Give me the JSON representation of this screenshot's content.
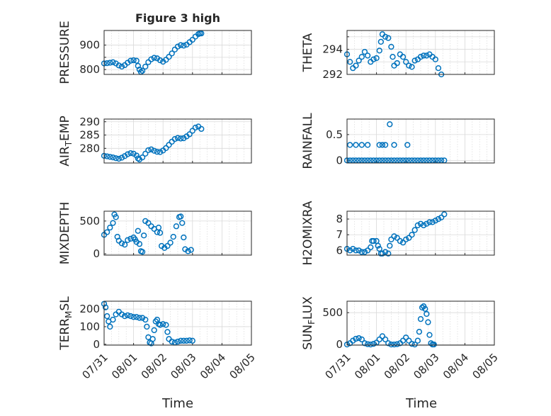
{
  "figure": {
    "title": "Figure 3 high",
    "xlabel": "Time",
    "x_ticks": [
      "07/31",
      "08/01",
      "08/02",
      "08/03",
      "08/04",
      "08/05"
    ],
    "marker_color": "#0072BD",
    "grid_color": "#d9d9d9"
  },
  "chart_data": [
    {
      "type": "scatter",
      "ylabel": "PRESSURE",
      "ylabel_sub": "",
      "ylabel_tail": "",
      "xlim": [
        0,
        5
      ],
      "ylim": [
        780,
        960
      ],
      "yticks": [
        800,
        850,
        900
      ],
      "ytick_labels": [
        "800",
        "",
        "900"
      ],
      "points": [
        [
          0,
          825
        ],
        [
          0.1,
          826
        ],
        [
          0.2,
          828
        ],
        [
          0.3,
          830
        ],
        [
          0.4,
          825
        ],
        [
          0.5,
          817
        ],
        [
          0.6,
          812
        ],
        [
          0.7,
          818
        ],
        [
          0.8,
          828
        ],
        [
          0.9,
          836
        ],
        [
          1.0,
          838
        ],
        [
          1.1,
          836
        ],
        [
          1.15,
          815
        ],
        [
          1.2,
          800
        ],
        [
          1.25,
          790
        ],
        [
          1.3,
          795
        ],
        [
          1.4,
          812
        ],
        [
          1.5,
          830
        ],
        [
          1.6,
          842
        ],
        [
          1.7,
          848
        ],
        [
          1.8,
          846
        ],
        [
          1.9,
          838
        ],
        [
          2.0,
          832
        ],
        [
          2.1,
          840
        ],
        [
          2.2,
          852
        ],
        [
          2.3,
          866
        ],
        [
          2.4,
          882
        ],
        [
          2.5,
          894
        ],
        [
          2.6,
          900
        ],
        [
          2.7,
          898
        ],
        [
          2.8,
          902
        ],
        [
          2.9,
          912
        ],
        [
          3.0,
          922
        ],
        [
          3.1,
          935
        ],
        [
          3.2,
          945
        ],
        [
          3.25,
          948
        ],
        [
          3.3,
          948
        ]
      ]
    },
    {
      "type": "scatter",
      "ylabel": "THETA",
      "ylabel_sub": "",
      "ylabel_tail": "",
      "xlim": [
        0,
        5
      ],
      "ylim": [
        292,
        295.5
      ],
      "yticks": [
        292,
        293,
        294,
        295
      ],
      "ytick_labels": [
        "292",
        "",
        "294",
        ""
      ],
      "points": [
        [
          0,
          293.6
        ],
        [
          0.1,
          293.0
        ],
        [
          0.2,
          292.5
        ],
        [
          0.3,
          292.7
        ],
        [
          0.4,
          293.1
        ],
        [
          0.5,
          293.4
        ],
        [
          0.6,
          293.8
        ],
        [
          0.7,
          293.5
        ],
        [
          0.8,
          293.0
        ],
        [
          0.9,
          293.2
        ],
        [
          1.0,
          293.3
        ],
        [
          1.1,
          293.9
        ],
        [
          1.15,
          294.6
        ],
        [
          1.2,
          295.2
        ],
        [
          1.3,
          295.0
        ],
        [
          1.4,
          294.9
        ],
        [
          1.5,
          294.2
        ],
        [
          1.55,
          293.4
        ],
        [
          1.6,
          292.7
        ],
        [
          1.7,
          292.9
        ],
        [
          1.8,
          293.6
        ],
        [
          1.9,
          293.4
        ],
        [
          2.0,
          293.0
        ],
        [
          2.1,
          292.7
        ],
        [
          2.2,
          292.6
        ],
        [
          2.3,
          293.1
        ],
        [
          2.4,
          293.2
        ],
        [
          2.5,
          293.4
        ],
        [
          2.6,
          293.5
        ],
        [
          2.7,
          293.5
        ],
        [
          2.8,
          293.6
        ],
        [
          2.9,
          293.4
        ],
        [
          3.0,
          293.2
        ],
        [
          3.1,
          292.5
        ],
        [
          3.2,
          292.0
        ]
      ]
    },
    {
      "type": "scatter",
      "ylabel": "AIR",
      "ylabel_sub": "T",
      "ylabel_tail": "EMP",
      "xlim": [
        0,
        5
      ],
      "ylim": [
        274.5,
        291
      ],
      "yticks": [
        280,
        285,
        290
      ],
      "ytick_labels": [
        "280",
        "285",
        "290"
      ],
      "points": [
        [
          0,
          277.2
        ],
        [
          0.1,
          277.0
        ],
        [
          0.2,
          276.8
        ],
        [
          0.3,
          276.6
        ],
        [
          0.4,
          276.3
        ],
        [
          0.5,
          276.1
        ],
        [
          0.6,
          276.5
        ],
        [
          0.7,
          277.1
        ],
        [
          0.8,
          277.8
        ],
        [
          0.9,
          278.2
        ],
        [
          1.0,
          278.0
        ],
        [
          1.1,
          277.3
        ],
        [
          1.15,
          276.2
        ],
        [
          1.2,
          275.8
        ],
        [
          1.3,
          276.6
        ],
        [
          1.4,
          278.0
        ],
        [
          1.5,
          279.3
        ],
        [
          1.6,
          279.6
        ],
        [
          1.7,
          279.1
        ],
        [
          1.8,
          278.7
        ],
        [
          1.9,
          278.6
        ],
        [
          2.0,
          279.2
        ],
        [
          2.1,
          280.1
        ],
        [
          2.2,
          281.3
        ],
        [
          2.3,
          282.5
        ],
        [
          2.4,
          283.5
        ],
        [
          2.5,
          283.9
        ],
        [
          2.6,
          283.7
        ],
        [
          2.7,
          283.8
        ],
        [
          2.8,
          284.5
        ],
        [
          2.9,
          285.3
        ],
        [
          3.0,
          286.6
        ],
        [
          3.1,
          287.8
        ],
        [
          3.2,
          288.2
        ],
        [
          3.3,
          287.3
        ]
      ]
    },
    {
      "type": "scatter",
      "ylabel": "RAINFALL",
      "ylabel_sub": "",
      "ylabel_tail": "",
      "xlim": [
        0,
        5
      ],
      "ylim": [
        -0.05,
        0.8
      ],
      "yticks": [
        0,
        0.5
      ],
      "ytick_labels": [
        "0",
        "0.5"
      ],
      "points": [
        [
          0,
          0
        ],
        [
          0.1,
          0
        ],
        [
          0.2,
          0
        ],
        [
          0.3,
          0
        ],
        [
          0.4,
          0
        ],
        [
          0.5,
          0
        ],
        [
          0.6,
          0
        ],
        [
          0.7,
          0
        ],
        [
          0.8,
          0
        ],
        [
          0.9,
          0
        ],
        [
          1.0,
          0
        ],
        [
          1.1,
          0
        ],
        [
          1.2,
          0
        ],
        [
          1.3,
          0
        ],
        [
          1.4,
          0
        ],
        [
          1.5,
          0
        ],
        [
          1.6,
          0
        ],
        [
          1.7,
          0
        ],
        [
          1.8,
          0
        ],
        [
          1.9,
          0
        ],
        [
          2.0,
          0
        ],
        [
          2.1,
          0
        ],
        [
          2.2,
          0
        ],
        [
          2.3,
          0
        ],
        [
          2.4,
          0
        ],
        [
          2.5,
          0
        ],
        [
          2.6,
          0
        ],
        [
          2.7,
          0
        ],
        [
          2.8,
          0
        ],
        [
          2.9,
          0
        ],
        [
          3.0,
          0
        ],
        [
          3.1,
          0
        ],
        [
          3.2,
          0
        ],
        [
          3.3,
          0
        ],
        [
          0.1,
          0.3
        ],
        [
          0.3,
          0.3
        ],
        [
          0.5,
          0.3
        ],
        [
          0.7,
          0.3
        ],
        [
          1.1,
          0.3
        ],
        [
          1.2,
          0.3
        ],
        [
          1.3,
          0.3
        ],
        [
          1.45,
          0.7
        ],
        [
          1.6,
          0.3
        ],
        [
          2.05,
          0.3
        ]
      ]
    },
    {
      "type": "scatter",
      "ylabel": "MIXDEPTH",
      "ylabel_sub": "",
      "ylabel_tail": "",
      "xlim": [
        0,
        5
      ],
      "ylim": [
        -20,
        650
      ],
      "yticks": [
        0,
        500
      ],
      "ytick_labels": [
        "0",
        "500"
      ],
      "points": [
        [
          0,
          290
        ],
        [
          0.1,
          330
        ],
        [
          0.2,
          400
        ],
        [
          0.3,
          470
        ],
        [
          0.35,
          600
        ],
        [
          0.4,
          560
        ],
        [
          0.45,
          260
        ],
        [
          0.5,
          200
        ],
        [
          0.6,
          160
        ],
        [
          0.7,
          140
        ],
        [
          0.8,
          210
        ],
        [
          0.9,
          230
        ],
        [
          1.0,
          250
        ],
        [
          1.05,
          220
        ],
        [
          1.1,
          180
        ],
        [
          1.15,
          350
        ],
        [
          1.2,
          150
        ],
        [
          1.25,
          40
        ],
        [
          1.3,
          30
        ],
        [
          1.35,
          280
        ],
        [
          1.4,
          500
        ],
        [
          1.5,
          470
        ],
        [
          1.6,
          420
        ],
        [
          1.7,
          380
        ],
        [
          1.8,
          330
        ],
        [
          1.85,
          400
        ],
        [
          1.9,
          320
        ],
        [
          1.95,
          120
        ],
        [
          2.05,
          90
        ],
        [
          2.15,
          120
        ],
        [
          2.25,
          170
        ],
        [
          2.35,
          260
        ],
        [
          2.45,
          420
        ],
        [
          2.55,
          560
        ],
        [
          2.6,
          570
        ],
        [
          2.65,
          470
        ],
        [
          2.7,
          250
        ],
        [
          2.75,
          70
        ],
        [
          2.85,
          40
        ],
        [
          2.95,
          60
        ]
      ]
    },
    {
      "type": "scatter",
      "ylabel": "H2OMIXRA",
      "ylabel_sub": "",
      "ylabel_tail": "",
      "xlim": [
        0,
        5
      ],
      "ylim": [
        5.7,
        8.5
      ],
      "yticks": [
        6,
        7,
        8
      ],
      "ytick_labels": [
        "6",
        "7",
        "8"
      ],
      "points": [
        [
          0,
          6.1
        ],
        [
          0.1,
          6.0
        ],
        [
          0.2,
          6.1
        ],
        [
          0.3,
          6.0
        ],
        [
          0.4,
          6.0
        ],
        [
          0.5,
          5.9
        ],
        [
          0.6,
          5.9
        ],
        [
          0.7,
          6.0
        ],
        [
          0.8,
          6.2
        ],
        [
          0.85,
          6.6
        ],
        [
          0.9,
          6.6
        ],
        [
          1.0,
          6.6
        ],
        [
          1.05,
          6.3
        ],
        [
          1.1,
          6.1
        ],
        [
          1.15,
          5.8
        ],
        [
          1.2,
          5.8
        ],
        [
          1.3,
          5.9
        ],
        [
          1.4,
          5.8
        ],
        [
          1.45,
          6.3
        ],
        [
          1.5,
          6.7
        ],
        [
          1.6,
          6.9
        ],
        [
          1.7,
          6.8
        ],
        [
          1.8,
          6.6
        ],
        [
          1.9,
          6.5
        ],
        [
          2.0,
          6.7
        ],
        [
          2.1,
          6.8
        ],
        [
          2.2,
          7.0
        ],
        [
          2.3,
          7.3
        ],
        [
          2.4,
          7.6
        ],
        [
          2.5,
          7.7
        ],
        [
          2.6,
          7.6
        ],
        [
          2.7,
          7.7
        ],
        [
          2.8,
          7.8
        ],
        [
          2.9,
          7.8
        ],
        [
          3.0,
          7.9
        ],
        [
          3.1,
          8.0
        ],
        [
          3.2,
          8.1
        ],
        [
          3.3,
          8.3
        ]
      ]
    },
    {
      "type": "scatter",
      "ylabel": "TERR",
      "ylabel_sub": "M",
      "ylabel_tail": "SL",
      "xlim": [
        0,
        5
      ],
      "ylim": [
        -5,
        245
      ],
      "yticks": [
        0,
        100,
        200
      ],
      "ytick_labels": [
        "0",
        "100",
        "200"
      ],
      "points": [
        [
          0,
          230
        ],
        [
          0.05,
          210
        ],
        [
          0.1,
          160
        ],
        [
          0.15,
          130
        ],
        [
          0.2,
          100
        ],
        [
          0.3,
          140
        ],
        [
          0.4,
          170
        ],
        [
          0.5,
          185
        ],
        [
          0.6,
          170
        ],
        [
          0.7,
          160
        ],
        [
          0.8,
          165
        ],
        [
          0.9,
          160
        ],
        [
          1.0,
          155
        ],
        [
          1.1,
          155
        ],
        [
          1.2,
          150
        ],
        [
          1.3,
          150
        ],
        [
          1.4,
          140
        ],
        [
          1.45,
          100
        ],
        [
          1.5,
          40
        ],
        [
          1.55,
          10
        ],
        [
          1.6,
          5
        ],
        [
          1.65,
          30
        ],
        [
          1.7,
          80
        ],
        [
          1.75,
          130
        ],
        [
          1.8,
          140
        ],
        [
          1.85,
          115
        ],
        [
          1.9,
          110
        ],
        [
          2.0,
          115
        ],
        [
          2.1,
          110
        ],
        [
          2.15,
          70
        ],
        [
          2.2,
          30
        ],
        [
          2.3,
          15
        ],
        [
          2.4,
          10
        ],
        [
          2.5,
          15
        ],
        [
          2.6,
          20
        ],
        [
          2.7,
          20
        ],
        [
          2.8,
          20
        ],
        [
          2.9,
          22
        ],
        [
          3.0,
          20
        ]
      ]
    },
    {
      "type": "scatter",
      "ylabel": "SUN",
      "ylabel_sub": "F",
      "ylabel_tail": "LUX",
      "xlim": [
        0,
        5
      ],
      "ylim": [
        -10,
        680
      ],
      "yticks": [
        0,
        500
      ],
      "ytick_labels": [
        "0",
        "500"
      ],
      "points": [
        [
          0,
          0
        ],
        [
          0.1,
          20
        ],
        [
          0.2,
          60
        ],
        [
          0.3,
          90
        ],
        [
          0.4,
          100
        ],
        [
          0.5,
          80
        ],
        [
          0.6,
          20
        ],
        [
          0.7,
          5
        ],
        [
          0.8,
          0
        ],
        [
          0.9,
          10
        ],
        [
          1.0,
          30
        ],
        [
          1.1,
          80
        ],
        [
          1.2,
          130
        ],
        [
          1.3,
          80
        ],
        [
          1.4,
          20
        ],
        [
          1.5,
          0
        ],
        [
          1.6,
          0
        ],
        [
          1.7,
          5
        ],
        [
          1.8,
          20
        ],
        [
          1.9,
          60
        ],
        [
          2.0,
          110
        ],
        [
          2.1,
          60
        ],
        [
          2.2,
          10
        ],
        [
          2.3,
          0
        ],
        [
          2.4,
          60
        ],
        [
          2.45,
          200
        ],
        [
          2.5,
          400
        ],
        [
          2.55,
          580
        ],
        [
          2.6,
          600
        ],
        [
          2.65,
          560
        ],
        [
          2.7,
          480
        ],
        [
          2.75,
          350
        ],
        [
          2.8,
          150
        ],
        [
          2.85,
          20
        ],
        [
          2.9,
          0
        ],
        [
          2.95,
          0
        ]
      ]
    }
  ]
}
